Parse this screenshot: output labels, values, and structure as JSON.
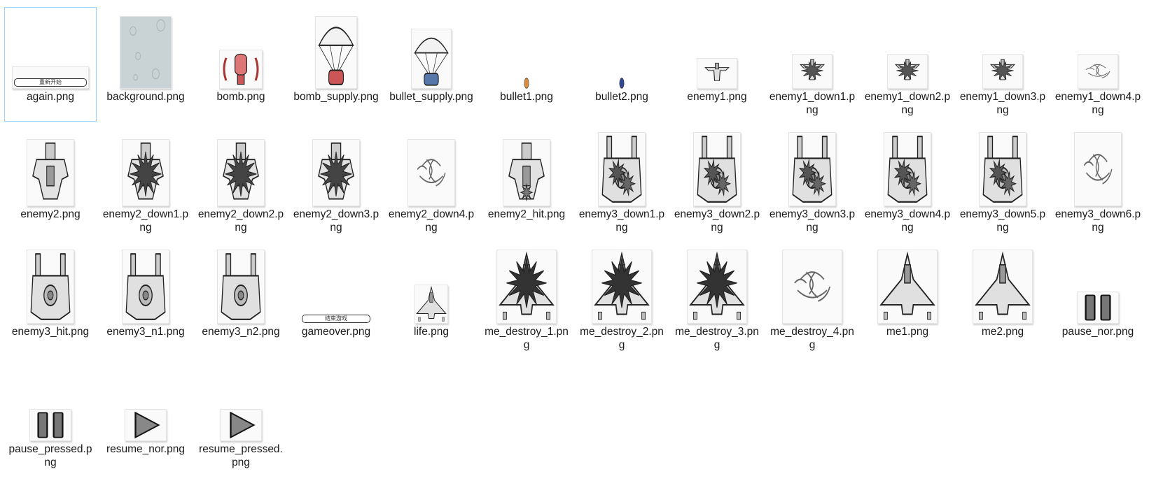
{
  "files": [
    {
      "name": "again.png",
      "icon": "again-button-icon",
      "caption": "重新开始",
      "selected": true
    },
    {
      "name": "background.png",
      "icon": "background-texture-icon"
    },
    {
      "name": "bomb.png",
      "icon": "bomb-icon"
    },
    {
      "name": "bomb_supply.png",
      "icon": "bomb-supply-parachute-icon"
    },
    {
      "name": "bullet_supply.png",
      "icon": "bullet-supply-parachute-icon"
    },
    {
      "name": "bullet1.png",
      "icon": "bullet-orange-icon"
    },
    {
      "name": "bullet2.png",
      "icon": "bullet-blue-icon"
    },
    {
      "name": "enemy1.png",
      "icon": "small-enemy-plane-icon"
    },
    {
      "name": "enemy1_down1.png",
      "icon": "small-enemy-explosion-icon"
    },
    {
      "name": "enemy1_down2.png",
      "icon": "small-enemy-explosion-icon"
    },
    {
      "name": "enemy1_down3.png",
      "icon": "small-enemy-explosion-icon"
    },
    {
      "name": "enemy1_down4.png",
      "icon": "smoke-swirl-icon"
    },
    {
      "name": "enemy2.png",
      "icon": "medium-enemy-plane-icon"
    },
    {
      "name": "enemy2_down1.png",
      "icon": "medium-enemy-explosion-icon"
    },
    {
      "name": "enemy2_down2.png",
      "icon": "medium-enemy-explosion-icon"
    },
    {
      "name": "enemy2_down3.png",
      "icon": "medium-enemy-explosion-icon"
    },
    {
      "name": "enemy2_down4.png",
      "icon": "smoke-swirl-icon"
    },
    {
      "name": "enemy2_hit.png",
      "icon": "medium-enemy-hit-icon"
    },
    {
      "name": "enemy3_down1.png",
      "icon": "large-enemy-explosion-icon"
    },
    {
      "name": "enemy3_down2.png",
      "icon": "large-enemy-explosion-icon"
    },
    {
      "name": "enemy3_down3.png",
      "icon": "large-enemy-explosion-icon"
    },
    {
      "name": "enemy3_down4.png",
      "icon": "large-enemy-explosion-icon"
    },
    {
      "name": "enemy3_down5.png",
      "icon": "large-enemy-explosion-icon"
    },
    {
      "name": "enemy3_down6.png",
      "icon": "smoke-swirl-icon"
    },
    {
      "name": "enemy3_hit.png",
      "icon": "large-enemy-plane-icon"
    },
    {
      "name": "enemy3_n1.png",
      "icon": "large-enemy-plane-icon"
    },
    {
      "name": "enemy3_n2.png",
      "icon": "large-enemy-plane-icon"
    },
    {
      "name": "gameover.png",
      "icon": "gameover-button-icon",
      "caption": "结束游戏"
    },
    {
      "name": "life.png",
      "icon": "life-plane-icon"
    },
    {
      "name": "me_destroy_1.png",
      "icon": "player-plane-explosion-icon"
    },
    {
      "name": "me_destroy_2.png",
      "icon": "player-plane-explosion-icon"
    },
    {
      "name": "me_destroy_3.png",
      "icon": "player-plane-explosion-icon"
    },
    {
      "name": "me_destroy_4.png",
      "icon": "smoke-swirl-icon"
    },
    {
      "name": "me1.png",
      "icon": "player-plane-icon"
    },
    {
      "name": "me2.png",
      "icon": "player-plane-icon"
    },
    {
      "name": "pause_nor.png",
      "icon": "pause-icon"
    },
    {
      "name": "pause_pressed.png",
      "icon": "pause-icon"
    },
    {
      "name": "resume_nor.png",
      "icon": "resume-icon"
    },
    {
      "name": "resume_pressed.png",
      "icon": "resume-icon"
    }
  ]
}
